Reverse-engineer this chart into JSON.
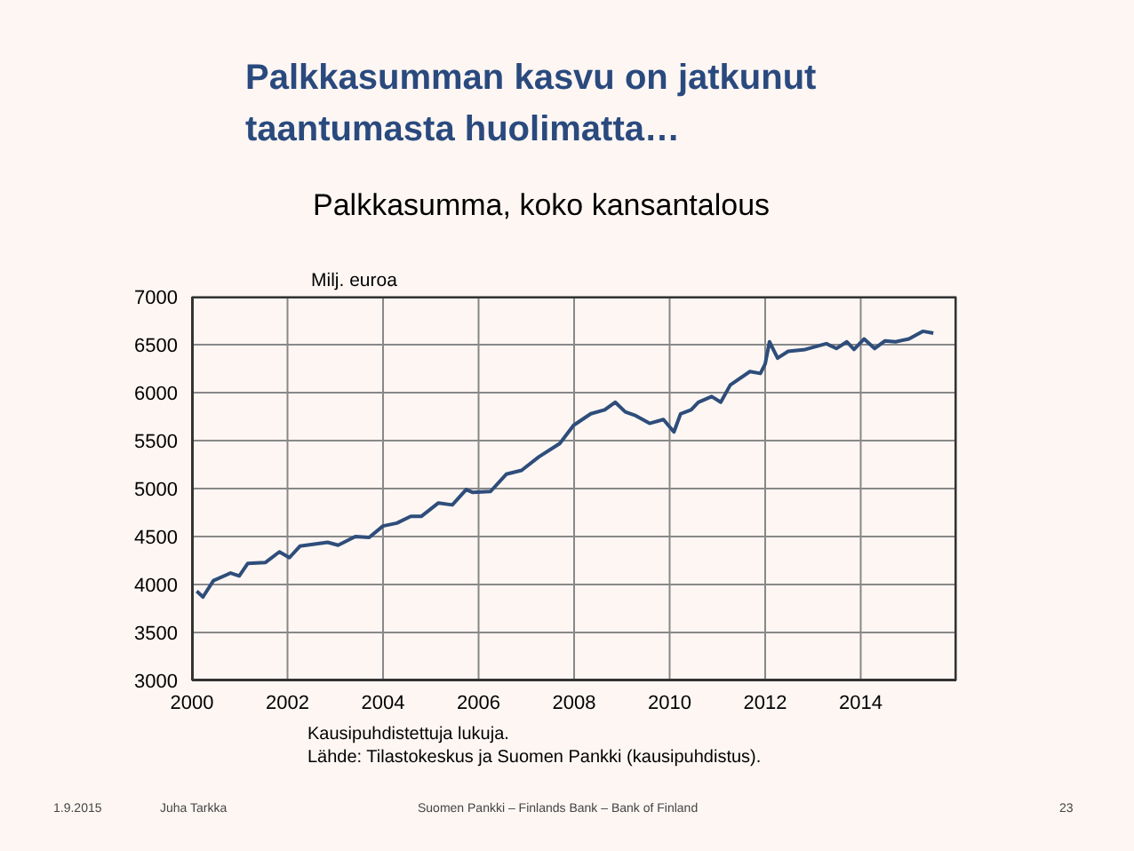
{
  "chart_data": {
    "type": "line",
    "title": "Palkkasumman kasvu on jatkunut taantumasta huolimatta…",
    "subtitle": "Palkkasumma, koko kansantalous",
    "ylabel": "Milj. euroa",
    "annotations": [
      "Kausipuhdistettuja lukuja.",
      "Lähde: Tilastokeskus ja Suomen Pankki (kausipuhdistus).",
      "1.9.2015",
      "Juha Tarkka",
      "Suomen Pankki – Finlands Bank – Bank of Finland",
      "23"
    ],
    "x": [
      2000.1,
      2000.23,
      2000.45,
      2000.81,
      2000.99,
      2001.17,
      2001.54,
      2001.83,
      2002.04,
      2002.26,
      2002.84,
      2003.06,
      2003.42,
      2003.71,
      2004.0,
      2004.29,
      2004.58,
      2004.8,
      2005.16,
      2005.45,
      2005.74,
      2005.88,
      2006.25,
      2006.58,
      2006.9,
      2007.26,
      2007.7,
      2007.99,
      2008.35,
      2008.64,
      2008.86,
      2009.07,
      2009.29,
      2009.58,
      2009.87,
      2010.09,
      2010.23,
      2010.45,
      2010.6,
      2010.88,
      2011.07,
      2011.27,
      2011.68,
      2011.9,
      2012.0,
      2012.09,
      2012.26,
      2012.48,
      2012.84,
      2013.28,
      2013.49,
      2013.71,
      2013.86,
      2014.07,
      2014.29,
      2014.51,
      2014.73,
      2015.01,
      2015.3,
      2015.52
    ],
    "series": [
      {
        "color": "#2e4d7b",
        "values": [
          3930,
          3870,
          4040,
          4120,
          4090,
          4220,
          4230,
          4340,
          4280,
          4400,
          4440,
          4410,
          4500,
          4490,
          4610,
          4640,
          4710,
          4710,
          4850,
          4830,
          4990,
          4960,
          4970,
          5150,
          5190,
          5330,
          5470,
          5660,
          5780,
          5820,
          5900,
          5800,
          5760,
          5680,
          5720,
          5590,
          5780,
          5820,
          5900,
          5960,
          5900,
          6080,
          6220,
          6200,
          6300,
          6530,
          6360,
          6430,
          6450,
          6510,
          6460,
          6530,
          6450,
          6560,
          6460,
          6540,
          6530,
          6560,
          6640,
          6620
        ]
      }
    ],
    "xlim": [
      2000,
      2016
    ],
    "xticks": [
      2000,
      2002,
      2004,
      2006,
      2008,
      2010,
      2012,
      2014
    ],
    "ylim": [
      3000,
      7000
    ],
    "yticks": [
      3000,
      3500,
      4000,
      4500,
      5000,
      5500,
      6000,
      6500,
      7000
    ],
    "grid": true,
    "legend": false,
    "marker": "none",
    "line_style": "solid"
  }
}
